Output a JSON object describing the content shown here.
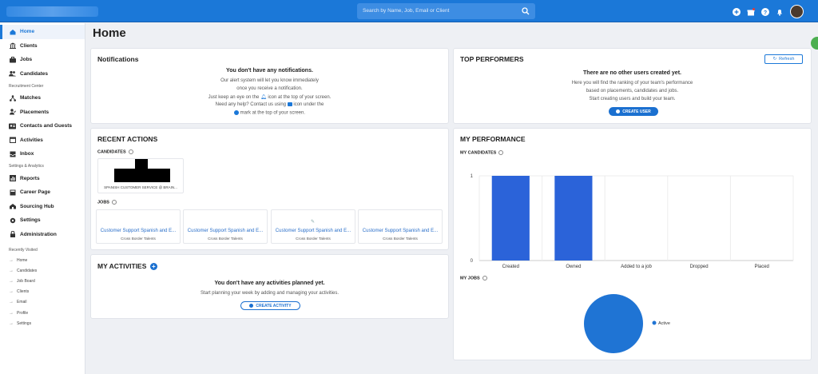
{
  "topbar": {
    "search_placeholder": "Search by Name, Job, Email or Client",
    "icons": [
      "plus-circle-icon",
      "gift-icon",
      "help-icon",
      "bell-icon",
      "user-avatar"
    ]
  },
  "sidebar": {
    "main_items": [
      {
        "label": "Home",
        "icon": "home-icon",
        "active": true
      },
      {
        "label": "Clients",
        "icon": "building-icon"
      },
      {
        "label": "Jobs",
        "icon": "briefcase-icon"
      },
      {
        "label": "Candidates",
        "icon": "people-icon"
      }
    ],
    "recruitment_heading": "Recruitment Center",
    "recruitment_items": [
      {
        "label": "Matches",
        "icon": "network-icon"
      },
      {
        "label": "Placements",
        "icon": "person-check-icon"
      },
      {
        "label": "Contacts and Guests",
        "icon": "contacts-icon"
      },
      {
        "label": "Activities",
        "icon": "calendar-icon"
      },
      {
        "label": "Inbox",
        "icon": "inbox-icon"
      }
    ],
    "settings_heading": "Settings & Analytics",
    "settings_items": [
      {
        "label": "Reports",
        "icon": "chart-icon"
      },
      {
        "label": "Career Page",
        "icon": "page-icon"
      },
      {
        "label": "Sourcing Hub",
        "icon": "hub-icon"
      },
      {
        "label": "Settings",
        "icon": "gear-icon"
      },
      {
        "label": "Administration",
        "icon": "lock-icon"
      }
    ],
    "recent_heading": "Recently Visited",
    "recent_items": [
      "Home",
      "Candidates",
      "Job Board",
      "Clients",
      "Email",
      "Profile",
      "Settings"
    ]
  },
  "page": {
    "title": "Home"
  },
  "notifications": {
    "title": "Notifications",
    "empty_title": "You don't have any notifications.",
    "line1": "Our alert system will let you know immediately",
    "line2": "once you receive a notification.",
    "line3a": "Just keep an eye on the",
    "line3b": "icon at the top of your screen.",
    "line4a": "Need any help? Contact us using",
    "line4b": "icon under the",
    "line5": "mark at the top of your screen."
  },
  "top_performers": {
    "title": "TOP PERFORMERS",
    "refresh_label": "Refresh",
    "empty_title": "There are no other users created yet.",
    "line1": "Here you will find the ranking of your team's performance",
    "line2": "based on placements, candidates and jobs.",
    "line3": "Start creating users and build your team.",
    "create_user_label": "CREATE USER"
  },
  "recent_actions": {
    "title": "RECENT ACTIONS",
    "candidates_label": "CANDIDATES",
    "candidate_caption": "SPANISH CUSTOMER SERVICE @ BRAIN...",
    "jobs_label": "JOBS",
    "jobs": [
      {
        "title": "Customer Support Spanish and E...",
        "client": "Cross Border Talents"
      },
      {
        "title": "Customer Support Spanish and E...",
        "client": "Cross Border Talents"
      },
      {
        "title": "Customer Support Spanish and E...",
        "client": "Cross Border Talents"
      },
      {
        "title": "Customer Support Spanish and E...",
        "client": "Cross Border Talents"
      }
    ]
  },
  "my_activities": {
    "title": "MY ACTIVITIES",
    "empty_title": "You don't have any activities planned yet.",
    "line1": "Start planning your week by adding and managing your activities.",
    "create_label": "CREATE ACTIVITY"
  },
  "my_performance": {
    "title": "MY PERFORMANCE",
    "candidates_label": "MY CANDIDATES",
    "jobs_label": "MY JOBS"
  },
  "chart_data": [
    {
      "type": "bar",
      "title": "MY CANDIDATES",
      "categories": [
        "Created",
        "Owned",
        "Added to a job",
        "Dropped",
        "Placed"
      ],
      "values": [
        1,
        1,
        0,
        0,
        0
      ],
      "ylim": [
        0,
        1
      ],
      "yticks": [
        "0",
        "1"
      ],
      "color": "#2b63d9"
    },
    {
      "type": "pie",
      "title": "MY JOBS",
      "labels": [
        "Active"
      ],
      "values": [
        1
      ],
      "colors": [
        "#1f74d4"
      ],
      "legend": "right"
    }
  ],
  "colors": {
    "brand": "#1b78d8",
    "bar": "#2b63d9",
    "button": "#1b70d0"
  }
}
